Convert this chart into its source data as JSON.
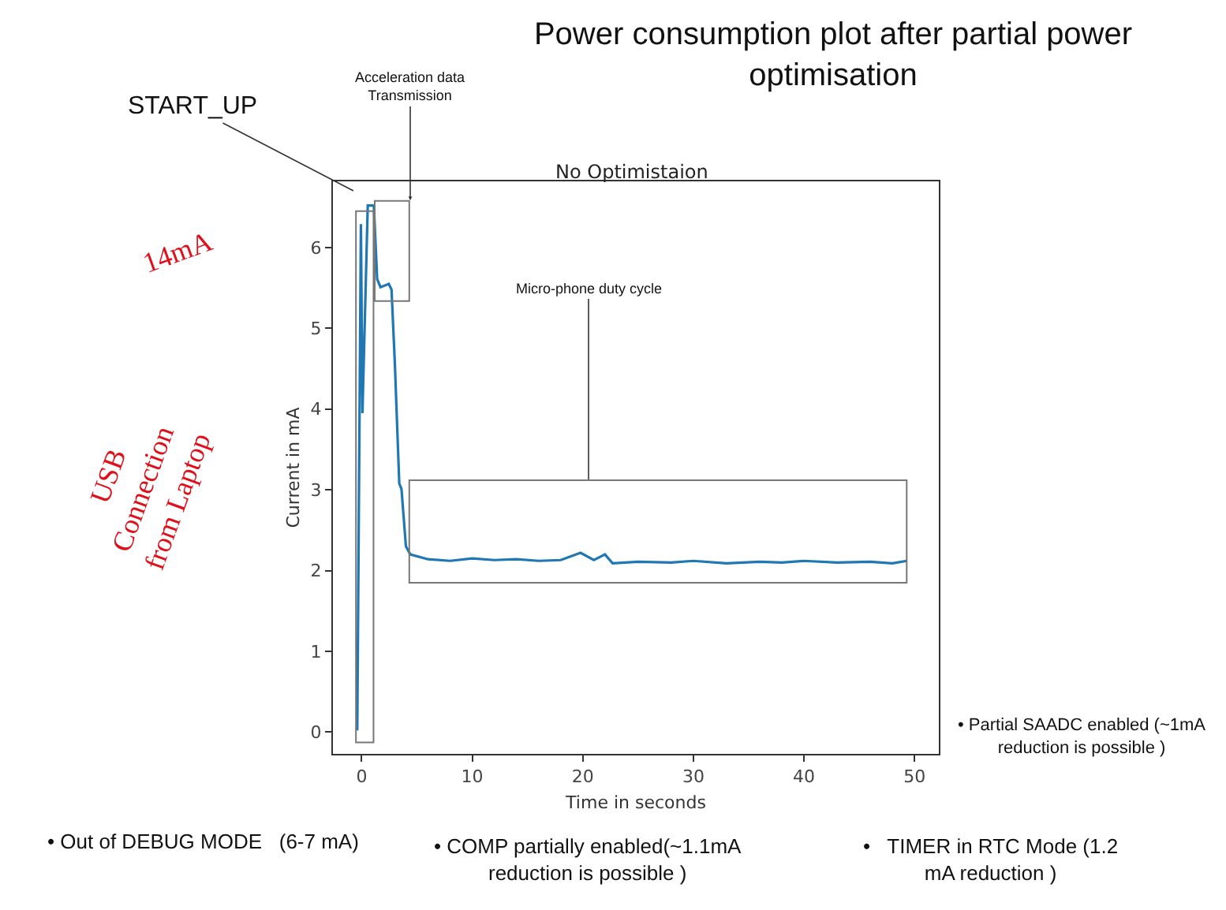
{
  "chart_data": {
    "type": "line",
    "title": "Power consumption plot after partial power\noptimisation",
    "subtitle": "No Optimistaion",
    "xlabel": "Time in seconds",
    "ylabel": "Current in mA",
    "x": [
      -0.4,
      -0.07,
      0.07,
      0.55,
      1.1,
      1.4,
      1.7,
      2.45,
      2.7,
      3.0,
      3.4,
      3.6,
      4.0,
      4.4,
      6,
      8,
      10,
      12,
      14,
      16,
      18,
      19.8,
      21,
      22,
      22.7,
      25,
      28,
      30,
      33,
      36,
      38,
      40,
      43,
      46,
      48,
      49.3
    ],
    "series": [
      {
        "color": "#1f77b4",
        "values": [
          0.02,
          6.29,
          3.95,
          6.52,
          6.52,
          5.61,
          5.51,
          5.55,
          5.48,
          4.57,
          3.08,
          3.01,
          2.3,
          2.2,
          2.14,
          2.12,
          2.15,
          2.13,
          2.14,
          2.12,
          2.13,
          2.22,
          2.13,
          2.2,
          2.09,
          2.11,
          2.1,
          2.12,
          2.09,
          2.11,
          2.1,
          2.12,
          2.1,
          2.11,
          2.09,
          2.12
        ]
      }
    ],
    "xlim": [
      -2.6,
      52.2
    ],
    "ylim": [
      -0.27,
      6.82
    ],
    "xticks": [
      0,
      10,
      20,
      30,
      40,
      50
    ],
    "yticks": [
      0,
      1,
      2,
      3,
      4,
      5,
      6
    ],
    "marker": "none",
    "line_style": "solid",
    "annotations": [
      "START_UP",
      "Acceleration data\nTransmission",
      "Micro-phone duty cycle",
      "• Out of DEBUG MODE   (6-7 mA)",
      "• COMP partially enabled(~1.1mA\nreduction is possible )",
      "•   TIMER in RTC Mode (1.2\nmA reduction )",
      "• Partial SAADC enabled (~1mA\nreduction is possible )",
      "14mA",
      "USB\nConnection\nfrom Laptop"
    ]
  }
}
